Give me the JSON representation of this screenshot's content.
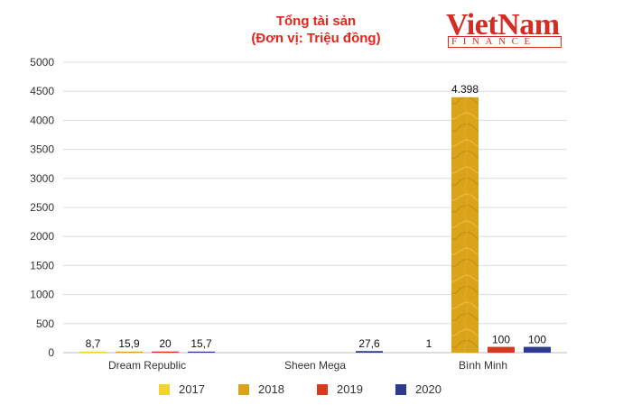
{
  "header": {
    "title_line1": "Tổng tài sản",
    "title_line2": "(Đơn vị: Triệu đồng)"
  },
  "logo": {
    "main": "VietNam",
    "sub": "FINANCE"
  },
  "chart_data": {
    "type": "bar",
    "categories": [
      "Dream Republic",
      "Sheen Mega",
      "Bình Minh"
    ],
    "series": [
      {
        "name": "2017",
        "values": [
          8.7,
          null,
          null
        ],
        "labels": [
          "8,7",
          "",
          ""
        ],
        "color": "#f2d22e"
      },
      {
        "name": "2018",
        "values": [
          15.9,
          null,
          4398
        ],
        "labels": [
          "15,9",
          "",
          "4.398"
        ],
        "color": "#d9a31a"
      },
      {
        "name": "2019",
        "values": [
          20,
          null,
          100
        ],
        "labels": [
          "20",
          "",
          "100"
        ],
        "color": "#d7391f"
      },
      {
        "name": "2020",
        "values": [
          15.7,
          27.6,
          100
        ],
        "labels": [
          "15,7",
          "27,6",
          "100"
        ],
        "color": "#2f3a8f"
      }
    ],
    "extra_labels": [
      {
        "category": "Bình Minh",
        "series": "2017",
        "value": 1,
        "text": "1"
      }
    ],
    "yticks": [
      "0",
      "500",
      "1000",
      "1500",
      "2000",
      "2500",
      "3000",
      "3500",
      "4000",
      "4500",
      "5000"
    ],
    "ylim": [
      0,
      5000
    ],
    "grid": true,
    "legend_position": "bottom"
  }
}
